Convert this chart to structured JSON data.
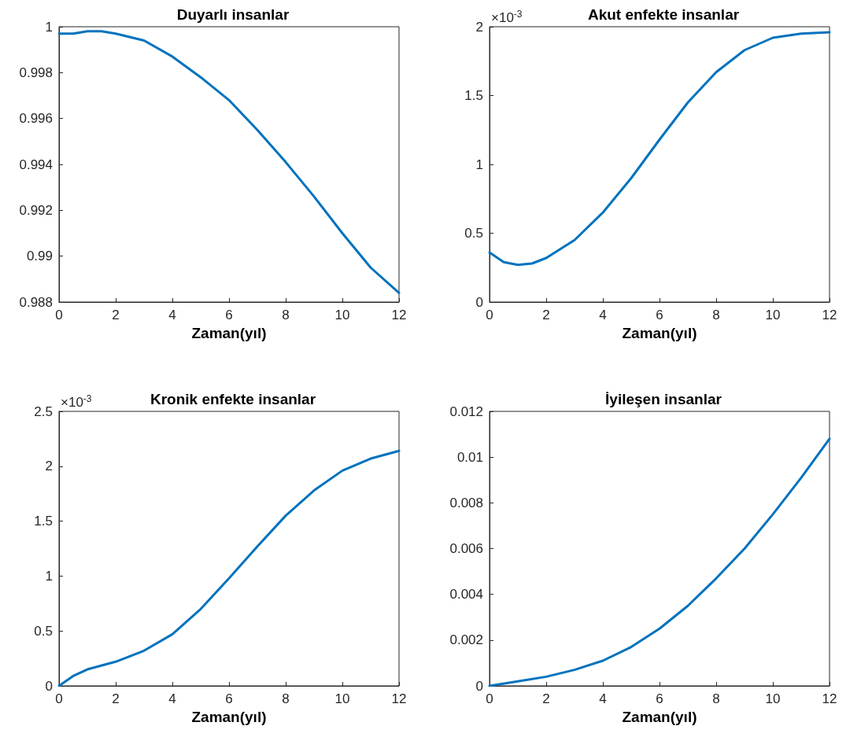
{
  "chart_data": [
    {
      "type": "line",
      "title": "Duyarlı insanlar",
      "xlabel": "Zaman(yıl)",
      "x": [
        0,
        0.5,
        1,
        1.5,
        2,
        3,
        4,
        5,
        6,
        7,
        8,
        9,
        10,
        11,
        12
      ],
      "series": [
        {
          "color": "#0072bd",
          "values": [
            0.9997,
            0.9997,
            0.9998,
            0.9998,
            0.9997,
            0.9994,
            0.9987,
            0.9978,
            0.9968,
            0.9955,
            0.9941,
            0.9926,
            0.991,
            0.9895,
            0.9884
          ]
        }
      ],
      "xlim": [
        0,
        12
      ],
      "xticks": [
        0,
        2,
        4,
        6,
        8,
        10,
        12
      ],
      "ylim": [
        0.988,
        1
      ],
      "yticks": [
        0.988,
        0.99,
        0.992,
        0.994,
        0.996,
        0.998,
        1
      ],
      "marker": "none",
      "line_style": "solid"
    },
    {
      "type": "line",
      "title": "Akut enfekte insanlar",
      "xlabel": "Zaman(yıl)",
      "annotations": [
        "×10$^{-3}$"
      ],
      "x": [
        0,
        0.5,
        1,
        1.5,
        2,
        3,
        4,
        5,
        6,
        7,
        8,
        9,
        10,
        11,
        12
      ],
      "series": [
        {
          "color": "#0072bd",
          "values": [
            0.36,
            0.29,
            0.27,
            0.28,
            0.32,
            0.45,
            0.65,
            0.9,
            1.18,
            1.45,
            1.67,
            1.83,
            1.92,
            1.95,
            1.96
          ]
        }
      ],
      "xlim": [
        0,
        12
      ],
      "xticks": [
        0,
        2,
        4,
        6,
        8,
        10,
        12
      ],
      "ylim": [
        0,
        2
      ],
      "yticks": [
        0,
        0.5,
        1,
        1.5,
        2
      ],
      "marker": "none",
      "line_style": "solid"
    },
    {
      "type": "line",
      "title": "Kronik enfekte insanlar",
      "xlabel": "Zaman(yıl)",
      "annotations": [
        "×10$^{-3}$"
      ],
      "x": [
        0,
        0.5,
        1,
        2,
        3,
        4,
        5,
        6,
        7,
        8,
        9,
        10,
        11,
        12
      ],
      "series": [
        {
          "color": "#0072bd",
          "values": [
            0,
            0.09,
            0.15,
            0.22,
            0.32,
            0.47,
            0.7,
            0.98,
            1.27,
            1.55,
            1.78,
            1.96,
            2.07,
            2.14
          ]
        }
      ],
      "xlim": [
        0,
        12
      ],
      "xticks": [
        0,
        2,
        4,
        6,
        8,
        10,
        12
      ],
      "ylim": [
        0,
        2.5
      ],
      "yticks": [
        0,
        0.5,
        1,
        1.5,
        2,
        2.5
      ],
      "marker": "none",
      "line_style": "solid"
    },
    {
      "type": "line",
      "title": "İyileşen insanlar",
      "xlabel": "Zaman(yıl)",
      "x": [
        0,
        1,
        2,
        3,
        4,
        5,
        6,
        7,
        8,
        9,
        10,
        11,
        12
      ],
      "series": [
        {
          "color": "#0072bd",
          "values": [
            0,
            0.0002,
            0.0004,
            0.0007,
            0.0011,
            0.0017,
            0.0025,
            0.0035,
            0.0047,
            0.006,
            0.0075,
            0.0091,
            0.0108
          ]
        }
      ],
      "xlim": [
        0,
        12
      ],
      "xticks": [
        0,
        2,
        4,
        6,
        8,
        10,
        12
      ],
      "ylim": [
        0,
        0.012
      ],
      "yticks": [
        0,
        0.002,
        0.004,
        0.006,
        0.008,
        0.01,
        0.012
      ],
      "marker": "none",
      "line_style": "solid"
    }
  ]
}
